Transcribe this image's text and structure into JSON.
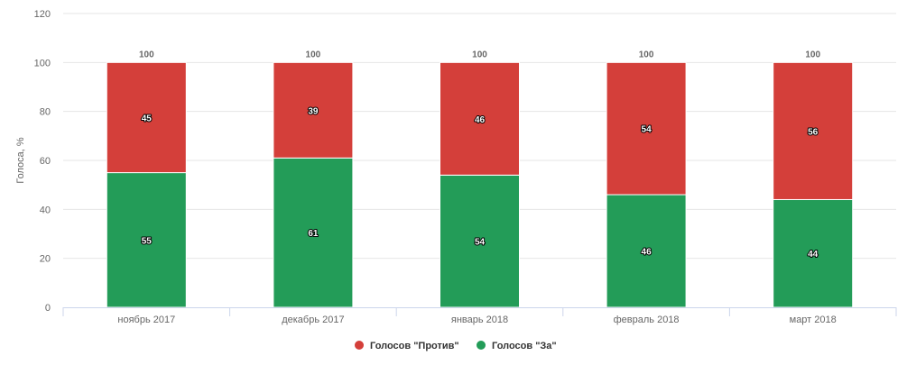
{
  "chart_data": {
    "type": "bar",
    "stacked": true,
    "categories": [
      "ноябрь 2017",
      "декабрь 2017",
      "январь 2018",
      "февраль 2018",
      "март 2018"
    ],
    "series": [
      {
        "name": "Голосов \"Против\"",
        "color": "#d43f3a",
        "values": [
          45,
          39,
          46,
          54,
          56
        ]
      },
      {
        "name": "Голосов \"За\"",
        "color": "#239c58",
        "values": [
          55,
          61,
          54,
          46,
          44
        ]
      }
    ],
    "totals": [
      100,
      100,
      100,
      100,
      100
    ],
    "title": "",
    "xlabel": "",
    "ylabel": "Голоса, %",
    "ylim": [
      0,
      120
    ],
    "yticks": [
      0,
      20,
      40,
      60,
      80,
      100,
      120
    ],
    "grid": true,
    "legend_position": "bottom-center"
  }
}
